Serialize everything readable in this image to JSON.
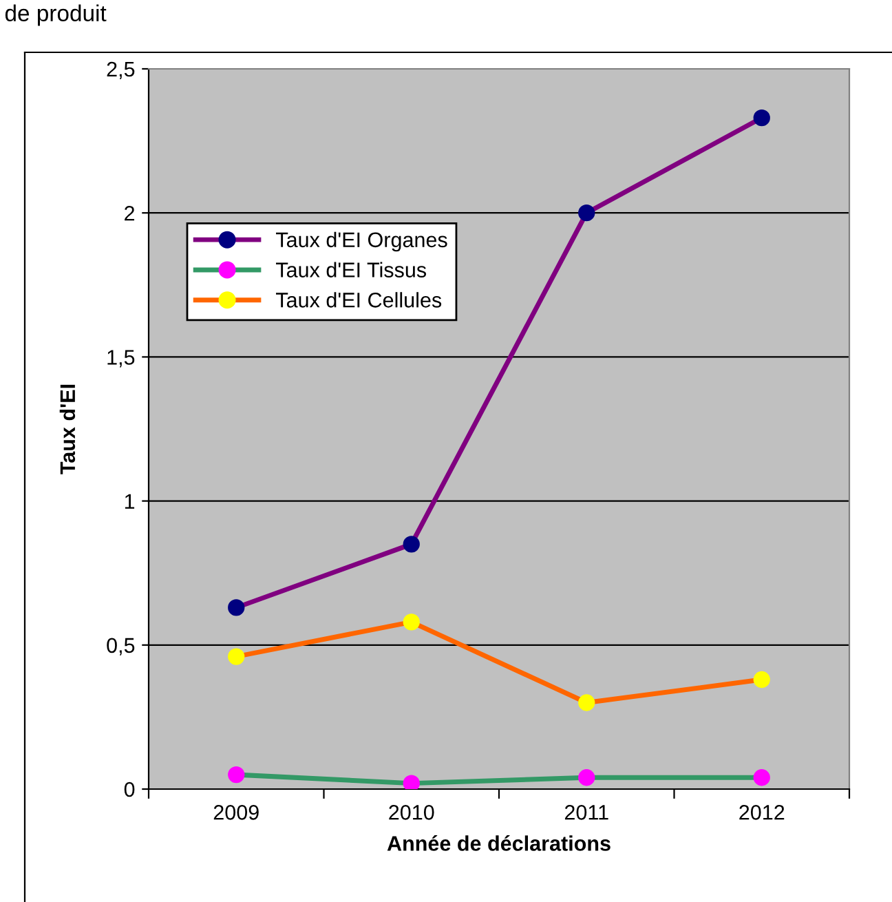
{
  "chart_data": {
    "type": "line",
    "xlabel": "Année de déclarations",
    "ylabel": "Taux d'EI",
    "annotations": [
      "de produit"
    ],
    "categories": [
      "2009",
      "2010",
      "2011",
      "2012"
    ],
    "series": [
      {
        "name": "Taux d'EI Organes",
        "color": "#800080",
        "colors": [
          "#000080",
          "#000080",
          "#000080",
          "#000080"
        ],
        "values": [
          0.63,
          0.85,
          2.0,
          2.33
        ]
      },
      {
        "name": "Taux d'EI Tissus",
        "color": "#339966",
        "colors": [
          "#ff00ff",
          "#ff00ff",
          "#ff00ff",
          "#ff00ff"
        ],
        "values": [
          0.05,
          0.02,
          0.04,
          0.04
        ]
      },
      {
        "name": "Taux d'EI Cellules",
        "color": "#ff6600",
        "colors": [
          "#ffff00",
          "#ffff00",
          "#ffff00",
          "#ffff00"
        ],
        "values": [
          0.46,
          0.58,
          0.3,
          0.38
        ]
      }
    ],
    "ylim": [
      0,
      2.5
    ],
    "yticks": [
      {
        "value": 0,
        "label": "0"
      },
      {
        "value": 0.5,
        "label": "0,5"
      },
      {
        "value": 1,
        "label": "1"
      },
      {
        "value": 1.5,
        "label": "1,5"
      },
      {
        "value": 2,
        "label": "2"
      },
      {
        "value": 2.5,
        "label": "2,5"
      }
    ],
    "grid": "y",
    "legend": "top left",
    "marker": "circle",
    "line_style": "solid"
  }
}
